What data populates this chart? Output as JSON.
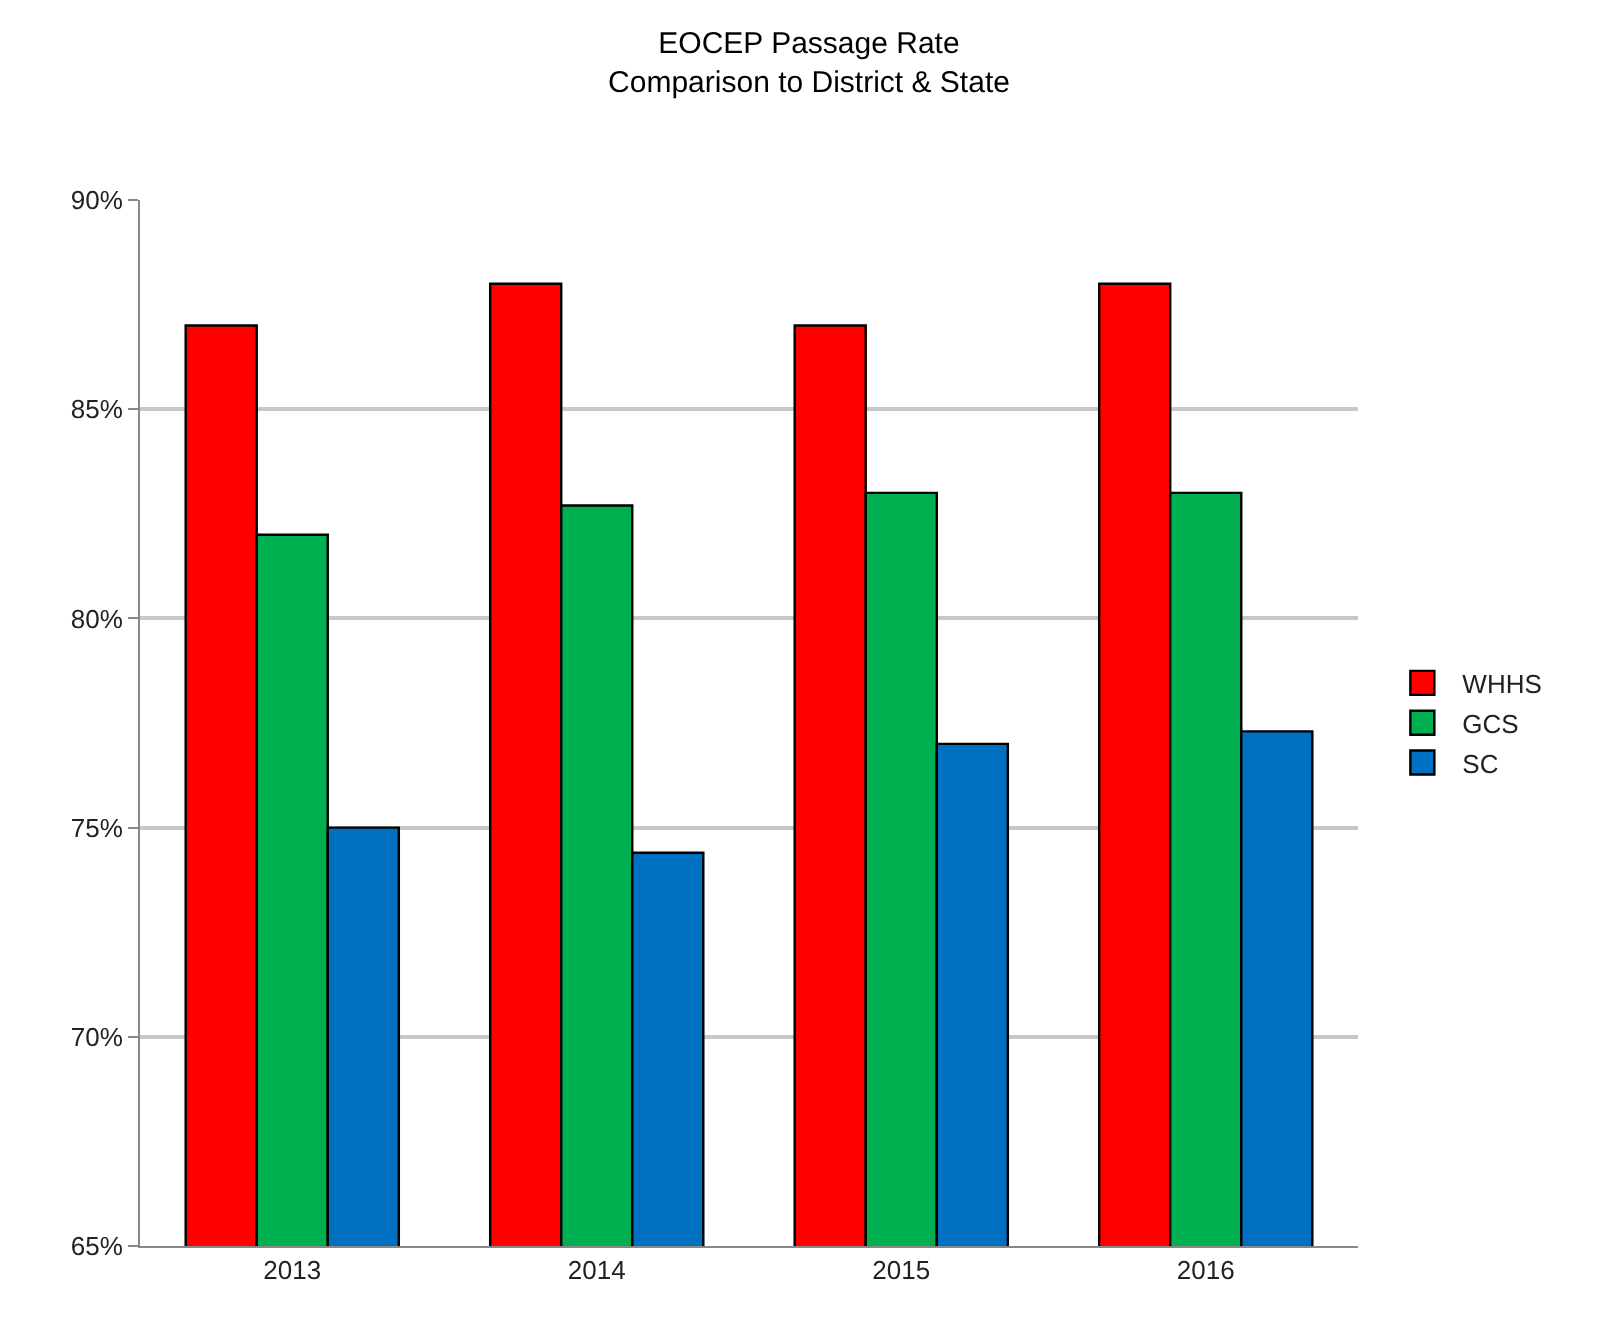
{
  "chart_data": {
    "type": "bar",
    "title": "EOCEP Passage Rate\nComparison to District & State",
    "categories": [
      "2013",
      "2014",
      "2015",
      "2016"
    ],
    "series": [
      {
        "name": "WHHS",
        "color": "#ff0000",
        "values": [
          87,
          88,
          87,
          88
        ]
      },
      {
        "name": "GCS",
        "color": "#00b050",
        "values": [
          82,
          82.7,
          83,
          83
        ]
      },
      {
        "name": "SC",
        "color": "#0070c0",
        "values": [
          75,
          74.4,
          77,
          77.3
        ]
      }
    ],
    "ylim": [
      65,
      90
    ],
    "yticks": [
      {
        "value": 65,
        "label": "65%"
      },
      {
        "value": 70,
        "label": "70%"
      },
      {
        "value": 75,
        "label": "75%"
      },
      {
        "value": 80,
        "label": "80%"
      },
      {
        "value": 85,
        "label": "85%"
      },
      {
        "value": 90,
        "label": "90%"
      }
    ],
    "grid": "y",
    "legend": "right"
  }
}
